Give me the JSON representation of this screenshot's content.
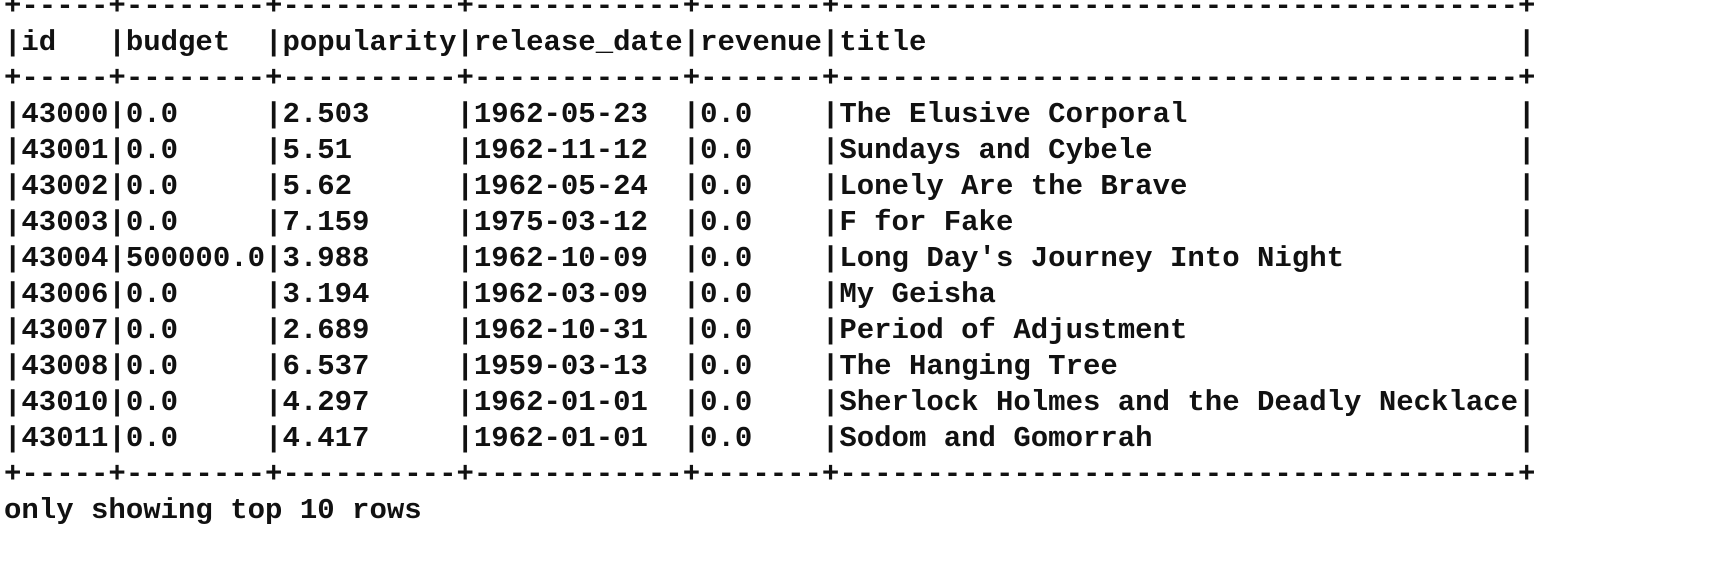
{
  "columns": [
    "id",
    "budget",
    "popularity",
    "release_date",
    "revenue",
    "title"
  ],
  "rows": [
    [
      "43000",
      "0.0",
      "2.503",
      "1962-05-23",
      "0.0",
      "The Elusive Corporal"
    ],
    [
      "43001",
      "0.0",
      "5.51",
      "1962-11-12",
      "0.0",
      "Sundays and Cybele"
    ],
    [
      "43002",
      "0.0",
      "5.62",
      "1962-05-24",
      "0.0",
      "Lonely Are the Brave"
    ],
    [
      "43003",
      "0.0",
      "7.159",
      "1975-03-12",
      "0.0",
      "F for Fake"
    ],
    [
      "43004",
      "500000.0",
      "3.988",
      "1962-10-09",
      "0.0",
      "Long Day's Journey Into Night"
    ],
    [
      "43006",
      "0.0",
      "3.194",
      "1962-03-09",
      "0.0",
      "My Geisha"
    ],
    [
      "43007",
      "0.0",
      "2.689",
      "1962-10-31",
      "0.0",
      "Period of Adjustment"
    ],
    [
      "43008",
      "0.0",
      "6.537",
      "1959-03-13",
      "0.0",
      "The Hanging Tree"
    ],
    [
      "43010",
      "0.0",
      "4.297",
      "1962-01-01",
      "0.0",
      "Sherlock Holmes and the Deadly Necklace"
    ],
    [
      "43011",
      "0.0",
      "4.417",
      "1962-01-01",
      "0.0",
      "Sodom and Gomorrah"
    ]
  ],
  "footer": "only showing top 10 rows"
}
